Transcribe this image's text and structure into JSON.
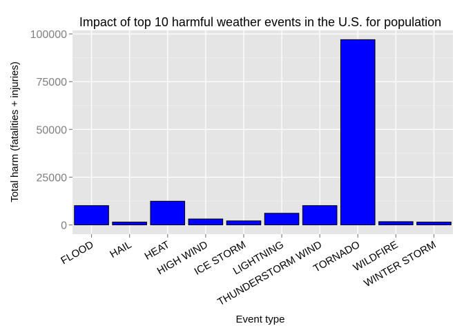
{
  "chart_data": {
    "type": "bar",
    "title": "Impact of top 10 harmful weather events in the U.S. for population",
    "xlabel": "Event type",
    "ylabel": "Total harm (fatalities + injuries)",
    "categories": [
      "FLOOD",
      "HAIL",
      "HEAT",
      "HIGH WIND",
      "ICE STORM",
      "LIGHTNING",
      "THUNDERSTORM WIND",
      "TORNADO",
      "WILDFIRE",
      "WINTER STORM"
    ],
    "values": [
      10100,
      1500,
      12400,
      3100,
      2100,
      6100,
      10100,
      97000,
      1700,
      1500
    ],
    "ylim": [
      -4850,
      101850
    ],
    "yticks": [
      0,
      25000,
      50000,
      75000,
      100000
    ],
    "ytick_labels": [
      "0",
      "25000",
      "50000",
      "75000",
      "100000"
    ],
    "bar_fill": "#0000ff",
    "bar_stroke": "#000000",
    "panel_background": "#e5e5e5",
    "grid": true,
    "legend": "none"
  }
}
